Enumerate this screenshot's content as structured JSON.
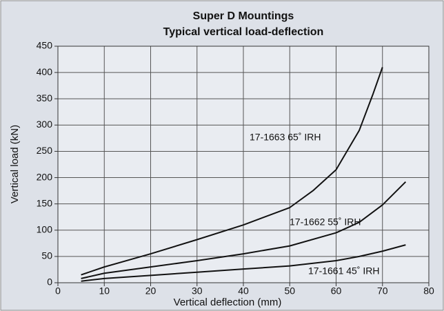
{
  "chart_data": {
    "type": "line",
    "title": "Super D Mountings",
    "subtitle": "Typical vertical load-deflection",
    "x_label": "Vertical deflection (mm)",
    "y_label": "Vertical load (kN)",
    "xlim": [
      0,
      80
    ],
    "xticks": [
      0,
      10,
      20,
      30,
      40,
      50,
      60,
      70,
      80
    ],
    "ylim": [
      0,
      450
    ],
    "yticks": [
      0,
      50,
      100,
      150,
      200,
      250,
      300,
      350,
      400,
      450
    ],
    "grid": true,
    "series": [
      {
        "name": "17-1663 65˚ IRH",
        "color": "#111111",
        "x": [
          5,
          10,
          20,
          30,
          40,
          50,
          55,
          60,
          65,
          68,
          70
        ],
        "values": [
          15,
          30,
          55,
          82,
          110,
          143,
          175,
          215,
          290,
          360,
          410
        ]
      },
      {
        "name": "17-1662 55˚ IRH",
        "color": "#111111",
        "x": [
          5,
          10,
          20,
          30,
          40,
          50,
          60,
          65,
          70,
          75
        ],
        "values": [
          8,
          18,
          30,
          42,
          55,
          70,
          95,
          115,
          148,
          192
        ]
      },
      {
        "name": "17-1661 45˚ IRH",
        "color": "#111111",
        "x": [
          5,
          10,
          20,
          30,
          40,
          50,
          60,
          65,
          70,
          75
        ],
        "values": [
          3,
          8,
          14,
          20,
          26,
          32,
          42,
          50,
          60,
          72
        ]
      }
    ]
  }
}
